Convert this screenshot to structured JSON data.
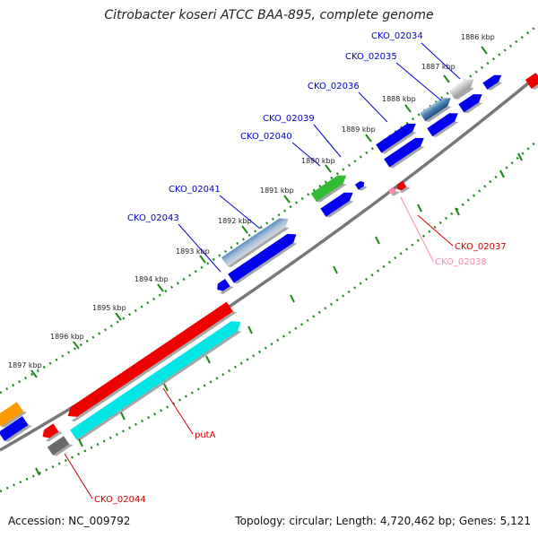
{
  "title": "Citrobacter koseri ATCC BAA-895, complete genome",
  "footer": {
    "accession_label": "Accession:",
    "accession": "NC_009792",
    "topology_text": "Topology: circular; Length: 4,720,462 bp; Genes: 5,121"
  },
  "colors": {
    "blue_gene": "#0000ee",
    "red_gene": "#ee0000",
    "cyan_gene": "#00e5e5",
    "green_gene": "#33bb33",
    "steelblue_gene": "#4a7fb0",
    "gray_gene": "#b0b0b0",
    "darkgray_gene": "#6a6a6a",
    "orange_gene": "#ff9900",
    "backbone": "#777777",
    "tick_dots": "#1a8a1a",
    "label_blue": "#0000cc",
    "label_red": "#cc0000",
    "label_pink": "#ff88aa"
  },
  "kbp_ticks": [
    {
      "label": "1886 kbp"
    },
    {
      "label": "1887 kbp"
    },
    {
      "label": "1888 kbp"
    },
    {
      "label": "1889 kbp"
    },
    {
      "label": "1890 kbp"
    },
    {
      "label": "1891 kbp"
    },
    {
      "label": "1892 kbp"
    },
    {
      "label": "1893 kbp"
    },
    {
      "label": "1894 kbp"
    },
    {
      "label": "1895 kbp"
    },
    {
      "label": "1896 kbp"
    },
    {
      "label": "1897 kbp"
    }
  ],
  "gene_labels": [
    {
      "name": "CKO_02034",
      "color": "label_blue"
    },
    {
      "name": "CKO_02035",
      "color": "label_blue"
    },
    {
      "name": "CKO_02036",
      "color": "label_blue"
    },
    {
      "name": "CKO_02039",
      "color": "label_blue"
    },
    {
      "name": "CKO_02040",
      "color": "label_blue"
    },
    {
      "name": "CKO_02041",
      "color": "label_blue"
    },
    {
      "name": "CKO_02043",
      "color": "label_blue"
    },
    {
      "name": "CKO_02037",
      "color": "label_red"
    },
    {
      "name": "CKO_02038",
      "color": "label_pink"
    },
    {
      "name": "putA",
      "color": "label_red"
    },
    {
      "name": "CKO_02044",
      "color": "label_red"
    }
  ]
}
